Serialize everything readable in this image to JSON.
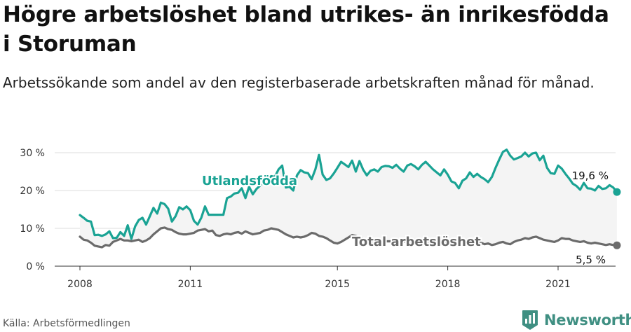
{
  "title": "Högre arbetslöshet bland utrikes- än inrikesfödda i Storuman",
  "subtitle": "Arbetssökande som andel av den registerbaserade arbetskraften månad för månad.",
  "source": "Källa: Arbetsförmedlingen",
  "brand": "Newsworthy",
  "colors": {
    "foreign": "#1aa394",
    "total": "#6b6b6b",
    "band": "#f4f4f4",
    "grid": "#dddddd",
    "brand": "#3f8f82"
  },
  "chart_data": {
    "type": "line",
    "title": "Högre arbetslöshet bland utrikes- än inrikesfödda i Storuman",
    "xlabel": "",
    "ylabel": "",
    "xlim": [
      2007.6,
      2022.7
    ],
    "ylim": [
      0,
      32
    ],
    "x_ticks": [
      2008,
      2011,
      2015,
      2018,
      2021
    ],
    "y_ticks": [
      0,
      10,
      20,
      30
    ],
    "y_tick_labels": [
      "0 %",
      "10 %",
      "20 %",
      "30 %"
    ],
    "grid": true,
    "series": [
      {
        "name": "Utlandsfödda",
        "end_label": "19,6 %",
        "points": [
          [
            2008.0,
            13.5
          ],
          [
            2008.1,
            12.8
          ],
          [
            2008.2,
            12.0
          ],
          [
            2008.3,
            11.8
          ],
          [
            2008.4,
            8.2
          ],
          [
            2008.5,
            8.3
          ],
          [
            2008.6,
            8.0
          ],
          [
            2008.7,
            8.4
          ],
          [
            2008.8,
            9.2
          ],
          [
            2008.9,
            7.4
          ],
          [
            2009.0,
            7.5
          ],
          [
            2009.1,
            9.0
          ],
          [
            2009.2,
            8.0
          ],
          [
            2009.3,
            10.8
          ],
          [
            2009.4,
            7.2
          ],
          [
            2009.5,
            10.5
          ],
          [
            2009.6,
            12.2
          ],
          [
            2009.7,
            12.8
          ],
          [
            2009.8,
            11.0
          ],
          [
            2009.9,
            13.2
          ],
          [
            2010.0,
            15.4
          ],
          [
            2010.1,
            13.9
          ],
          [
            2010.2,
            16.8
          ],
          [
            2010.3,
            16.4
          ],
          [
            2010.4,
            15.2
          ],
          [
            2010.5,
            11.8
          ],
          [
            2010.6,
            13.2
          ],
          [
            2010.7,
            15.6
          ],
          [
            2010.8,
            15.0
          ],
          [
            2010.9,
            15.8
          ],
          [
            2011.0,
            14.8
          ],
          [
            2011.1,
            12.0
          ],
          [
            2011.2,
            11.0
          ],
          [
            2011.3,
            12.8
          ],
          [
            2011.4,
            15.8
          ],
          [
            2011.5,
            13.6
          ],
          [
            2011.6,
            13.6
          ],
          [
            2011.7,
            13.6
          ],
          [
            2011.8,
            13.6
          ],
          [
            2011.9,
            13.6
          ],
          [
            2012.0,
            18.0
          ],
          [
            2012.1,
            18.4
          ],
          [
            2012.2,
            19.2
          ],
          [
            2012.3,
            19.4
          ],
          [
            2012.4,
            20.6
          ],
          [
            2012.5,
            18.0
          ],
          [
            2012.6,
            21.0
          ],
          [
            2012.7,
            19.0
          ],
          [
            2012.8,
            20.4
          ],
          [
            2013.0,
            22.2
          ],
          [
            2013.2,
            23.8
          ],
          [
            2013.3,
            23.6
          ],
          [
            2013.4,
            25.6
          ],
          [
            2013.5,
            26.6
          ],
          [
            2013.6,
            20.8
          ],
          [
            2013.7,
            21.0
          ],
          [
            2013.8,
            20.0
          ],
          [
            2013.9,
            24.0
          ],
          [
            2014.0,
            25.4
          ],
          [
            2014.1,
            24.8
          ],
          [
            2014.2,
            24.6
          ],
          [
            2014.3,
            23.0
          ],
          [
            2014.4,
            25.6
          ],
          [
            2014.5,
            29.4
          ],
          [
            2014.6,
            24.2
          ],
          [
            2014.7,
            22.8
          ],
          [
            2014.8,
            23.2
          ],
          [
            2014.9,
            24.5
          ],
          [
            2015.0,
            26.0
          ],
          [
            2015.1,
            27.6
          ],
          [
            2015.2,
            26.9
          ],
          [
            2015.3,
            26.2
          ],
          [
            2015.4,
            27.9
          ],
          [
            2015.5,
            25.0
          ],
          [
            2015.6,
            27.8
          ],
          [
            2015.7,
            25.5
          ],
          [
            2015.8,
            24.0
          ],
          [
            2015.9,
            25.2
          ],
          [
            2016.0,
            25.6
          ],
          [
            2016.1,
            25.0
          ],
          [
            2016.2,
            26.2
          ],
          [
            2016.3,
            26.5
          ],
          [
            2016.4,
            26.4
          ],
          [
            2016.5,
            26.0
          ],
          [
            2016.6,
            26.8
          ],
          [
            2016.7,
            25.8
          ],
          [
            2016.8,
            25.0
          ],
          [
            2016.9,
            26.6
          ],
          [
            2017.0,
            27.0
          ],
          [
            2017.1,
            26.4
          ],
          [
            2017.2,
            25.6
          ],
          [
            2017.3,
            26.8
          ],
          [
            2017.4,
            27.6
          ],
          [
            2017.5,
            26.6
          ],
          [
            2017.6,
            25.6
          ],
          [
            2017.7,
            24.8
          ],
          [
            2017.8,
            24.0
          ],
          [
            2017.9,
            25.6
          ],
          [
            2018.0,
            24.2
          ],
          [
            2018.1,
            22.4
          ],
          [
            2018.2,
            22.0
          ],
          [
            2018.3,
            20.6
          ],
          [
            2018.4,
            22.6
          ],
          [
            2018.5,
            23.2
          ],
          [
            2018.6,
            24.8
          ],
          [
            2018.7,
            23.6
          ],
          [
            2018.8,
            24.4
          ],
          [
            2018.9,
            23.6
          ],
          [
            2019.0,
            23.0
          ],
          [
            2019.1,
            22.2
          ],
          [
            2019.2,
            23.6
          ],
          [
            2019.3,
            26.0
          ],
          [
            2019.4,
            28.2
          ],
          [
            2019.5,
            30.2
          ],
          [
            2019.6,
            30.8
          ],
          [
            2019.7,
            29.2
          ],
          [
            2019.8,
            28.2
          ],
          [
            2019.9,
            28.6
          ],
          [
            2020.0,
            29.0
          ],
          [
            2020.1,
            30.0
          ],
          [
            2020.2,
            29.0
          ],
          [
            2020.3,
            29.8
          ],
          [
            2020.4,
            30.0
          ],
          [
            2020.5,
            28.0
          ],
          [
            2020.6,
            29.2
          ],
          [
            2020.7,
            26.0
          ],
          [
            2020.8,
            24.6
          ],
          [
            2020.9,
            24.4
          ],
          [
            2021.0,
            26.6
          ],
          [
            2021.1,
            25.8
          ],
          [
            2021.2,
            24.4
          ],
          [
            2021.3,
            23.2
          ],
          [
            2021.4,
            21.8
          ],
          [
            2021.5,
            21.2
          ],
          [
            2021.6,
            20.2
          ],
          [
            2021.7,
            22.0
          ],
          [
            2021.8,
            20.6
          ],
          [
            2021.9,
            20.5
          ],
          [
            2022.0,
            20.0
          ],
          [
            2022.1,
            21.2
          ],
          [
            2022.2,
            20.4
          ],
          [
            2022.3,
            20.6
          ],
          [
            2022.4,
            21.4
          ],
          [
            2022.5,
            20.8
          ],
          [
            2022.6,
            19.6
          ]
        ]
      },
      {
        "name": "Total arbetslöshet",
        "end_label": "5,5 %",
        "points": [
          [
            2008.0,
            7.8
          ],
          [
            2008.1,
            7.0
          ],
          [
            2008.2,
            6.8
          ],
          [
            2008.3,
            6.2
          ],
          [
            2008.4,
            5.4
          ],
          [
            2008.5,
            5.2
          ],
          [
            2008.6,
            5.0
          ],
          [
            2008.7,
            5.6
          ],
          [
            2008.8,
            5.4
          ],
          [
            2008.9,
            6.4
          ],
          [
            2009.0,
            6.8
          ],
          [
            2009.1,
            7.2
          ],
          [
            2009.2,
            6.8
          ],
          [
            2009.3,
            6.8
          ],
          [
            2009.4,
            6.6
          ],
          [
            2009.5,
            6.8
          ],
          [
            2009.6,
            7.0
          ],
          [
            2009.7,
            6.4
          ],
          [
            2009.8,
            6.8
          ],
          [
            2009.9,
            7.4
          ],
          [
            2010.0,
            8.4
          ],
          [
            2010.1,
            9.2
          ],
          [
            2010.2,
            10.0
          ],
          [
            2010.3,
            10.2
          ],
          [
            2010.4,
            9.8
          ],
          [
            2010.5,
            9.6
          ],
          [
            2010.6,
            9.0
          ],
          [
            2010.7,
            8.6
          ],
          [
            2010.8,
            8.4
          ],
          [
            2010.9,
            8.4
          ],
          [
            2011.0,
            8.6
          ],
          [
            2011.1,
            8.8
          ],
          [
            2011.2,
            9.4
          ],
          [
            2011.3,
            9.6
          ],
          [
            2011.4,
            9.8
          ],
          [
            2011.5,
            9.2
          ],
          [
            2011.6,
            9.4
          ],
          [
            2011.7,
            8.2
          ],
          [
            2011.8,
            8.0
          ],
          [
            2011.9,
            8.4
          ],
          [
            2012.0,
            8.6
          ],
          [
            2012.1,
            8.4
          ],
          [
            2012.2,
            8.8
          ],
          [
            2012.3,
            9.0
          ],
          [
            2012.4,
            8.6
          ],
          [
            2012.5,
            9.2
          ],
          [
            2012.6,
            8.8
          ],
          [
            2012.7,
            8.4
          ],
          [
            2012.8,
            8.6
          ],
          [
            2012.9,
            8.8
          ],
          [
            2013.0,
            9.4
          ],
          [
            2013.1,
            9.6
          ],
          [
            2013.2,
            10.0
          ],
          [
            2013.3,
            9.8
          ],
          [
            2013.4,
            9.6
          ],
          [
            2013.5,
            9.0
          ],
          [
            2013.6,
            8.4
          ],
          [
            2013.7,
            8.0
          ],
          [
            2013.8,
            7.6
          ],
          [
            2013.9,
            7.8
          ],
          [
            2014.0,
            7.6
          ],
          [
            2014.1,
            7.8
          ],
          [
            2014.2,
            8.2
          ],
          [
            2014.3,
            8.8
          ],
          [
            2014.4,
            8.6
          ],
          [
            2014.5,
            8.0
          ],
          [
            2014.6,
            7.8
          ],
          [
            2014.7,
            7.4
          ],
          [
            2014.8,
            6.8
          ],
          [
            2014.9,
            6.2
          ],
          [
            2015.0,
            6.0
          ],
          [
            2015.1,
            6.4
          ],
          [
            2015.2,
            7.0
          ],
          [
            2015.3,
            7.6
          ],
          [
            2015.4,
            8.2
          ],
          [
            2015.5,
            8.0
          ],
          [
            2015.6,
            7.6
          ],
          [
            2015.7,
            7.2
          ],
          [
            2015.8,
            6.8
          ],
          [
            2016.0,
            6.6
          ],
          [
            2018.6,
            6.4
          ],
          [
            2018.7,
            6.2
          ],
          [
            2018.8,
            6.0
          ],
          [
            2018.9,
            6.2
          ],
          [
            2019.0,
            5.8
          ],
          [
            2019.1,
            6.0
          ],
          [
            2019.2,
            5.6
          ],
          [
            2019.3,
            5.8
          ],
          [
            2019.4,
            6.2
          ],
          [
            2019.5,
            6.4
          ],
          [
            2019.6,
            6.0
          ],
          [
            2019.7,
            5.8
          ],
          [
            2019.8,
            6.4
          ],
          [
            2019.9,
            6.8
          ],
          [
            2020.0,
            7.0
          ],
          [
            2020.1,
            7.4
          ],
          [
            2020.2,
            7.2
          ],
          [
            2020.3,
            7.6
          ],
          [
            2020.4,
            7.8
          ],
          [
            2020.5,
            7.4
          ],
          [
            2020.6,
            7.0
          ],
          [
            2020.7,
            6.8
          ],
          [
            2020.8,
            6.6
          ],
          [
            2020.9,
            6.4
          ],
          [
            2021.0,
            6.8
          ],
          [
            2021.1,
            7.4
          ],
          [
            2021.2,
            7.2
          ],
          [
            2021.3,
            7.2
          ],
          [
            2021.4,
            6.8
          ],
          [
            2021.5,
            6.6
          ],
          [
            2021.6,
            6.4
          ],
          [
            2021.7,
            6.6
          ],
          [
            2021.8,
            6.2
          ],
          [
            2021.9,
            6.0
          ],
          [
            2022.0,
            6.2
          ],
          [
            2022.1,
            6.0
          ],
          [
            2022.2,
            5.8
          ],
          [
            2022.3,
            5.6
          ],
          [
            2022.4,
            5.8
          ],
          [
            2022.5,
            5.6
          ],
          [
            2022.6,
            5.5
          ]
        ]
      }
    ]
  }
}
